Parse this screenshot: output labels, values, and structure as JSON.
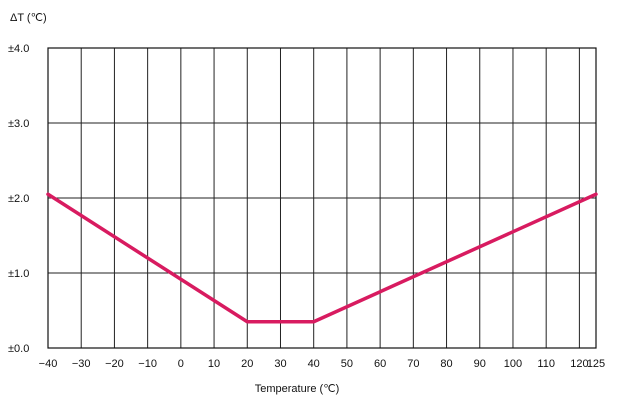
{
  "chart_data": {
    "type": "line",
    "title": "",
    "ylabel": "ΔT (℃)",
    "xlabel": "Temperature (℃)",
    "xlim": [
      -40,
      125
    ],
    "ylim": [
      0,
      4
    ],
    "grid": true,
    "x_ticks": [
      -40,
      -30,
      -20,
      -10,
      0,
      10,
      20,
      30,
      40,
      50,
      60,
      70,
      80,
      90,
      100,
      110,
      120,
      125
    ],
    "x_tick_labels": [
      "−40",
      "−30",
      "−20",
      "−10",
      "0",
      "10",
      "20",
      "30",
      "40",
      "50",
      "60",
      "70",
      "80",
      "90",
      "100",
      "110",
      "120",
      "125"
    ],
    "y_ticks": [
      0,
      1,
      2,
      3,
      4
    ],
    "y_tick_labels": [
      "±0.0",
      "±1.0",
      "±2.0",
      "±3.0",
      "±4.0"
    ],
    "series": [
      {
        "color": "#d81b60",
        "x": [
          -40,
          20,
          40,
          125
        ],
        "y": [
          2.05,
          0.35,
          0.35,
          2.05
        ]
      }
    ]
  }
}
